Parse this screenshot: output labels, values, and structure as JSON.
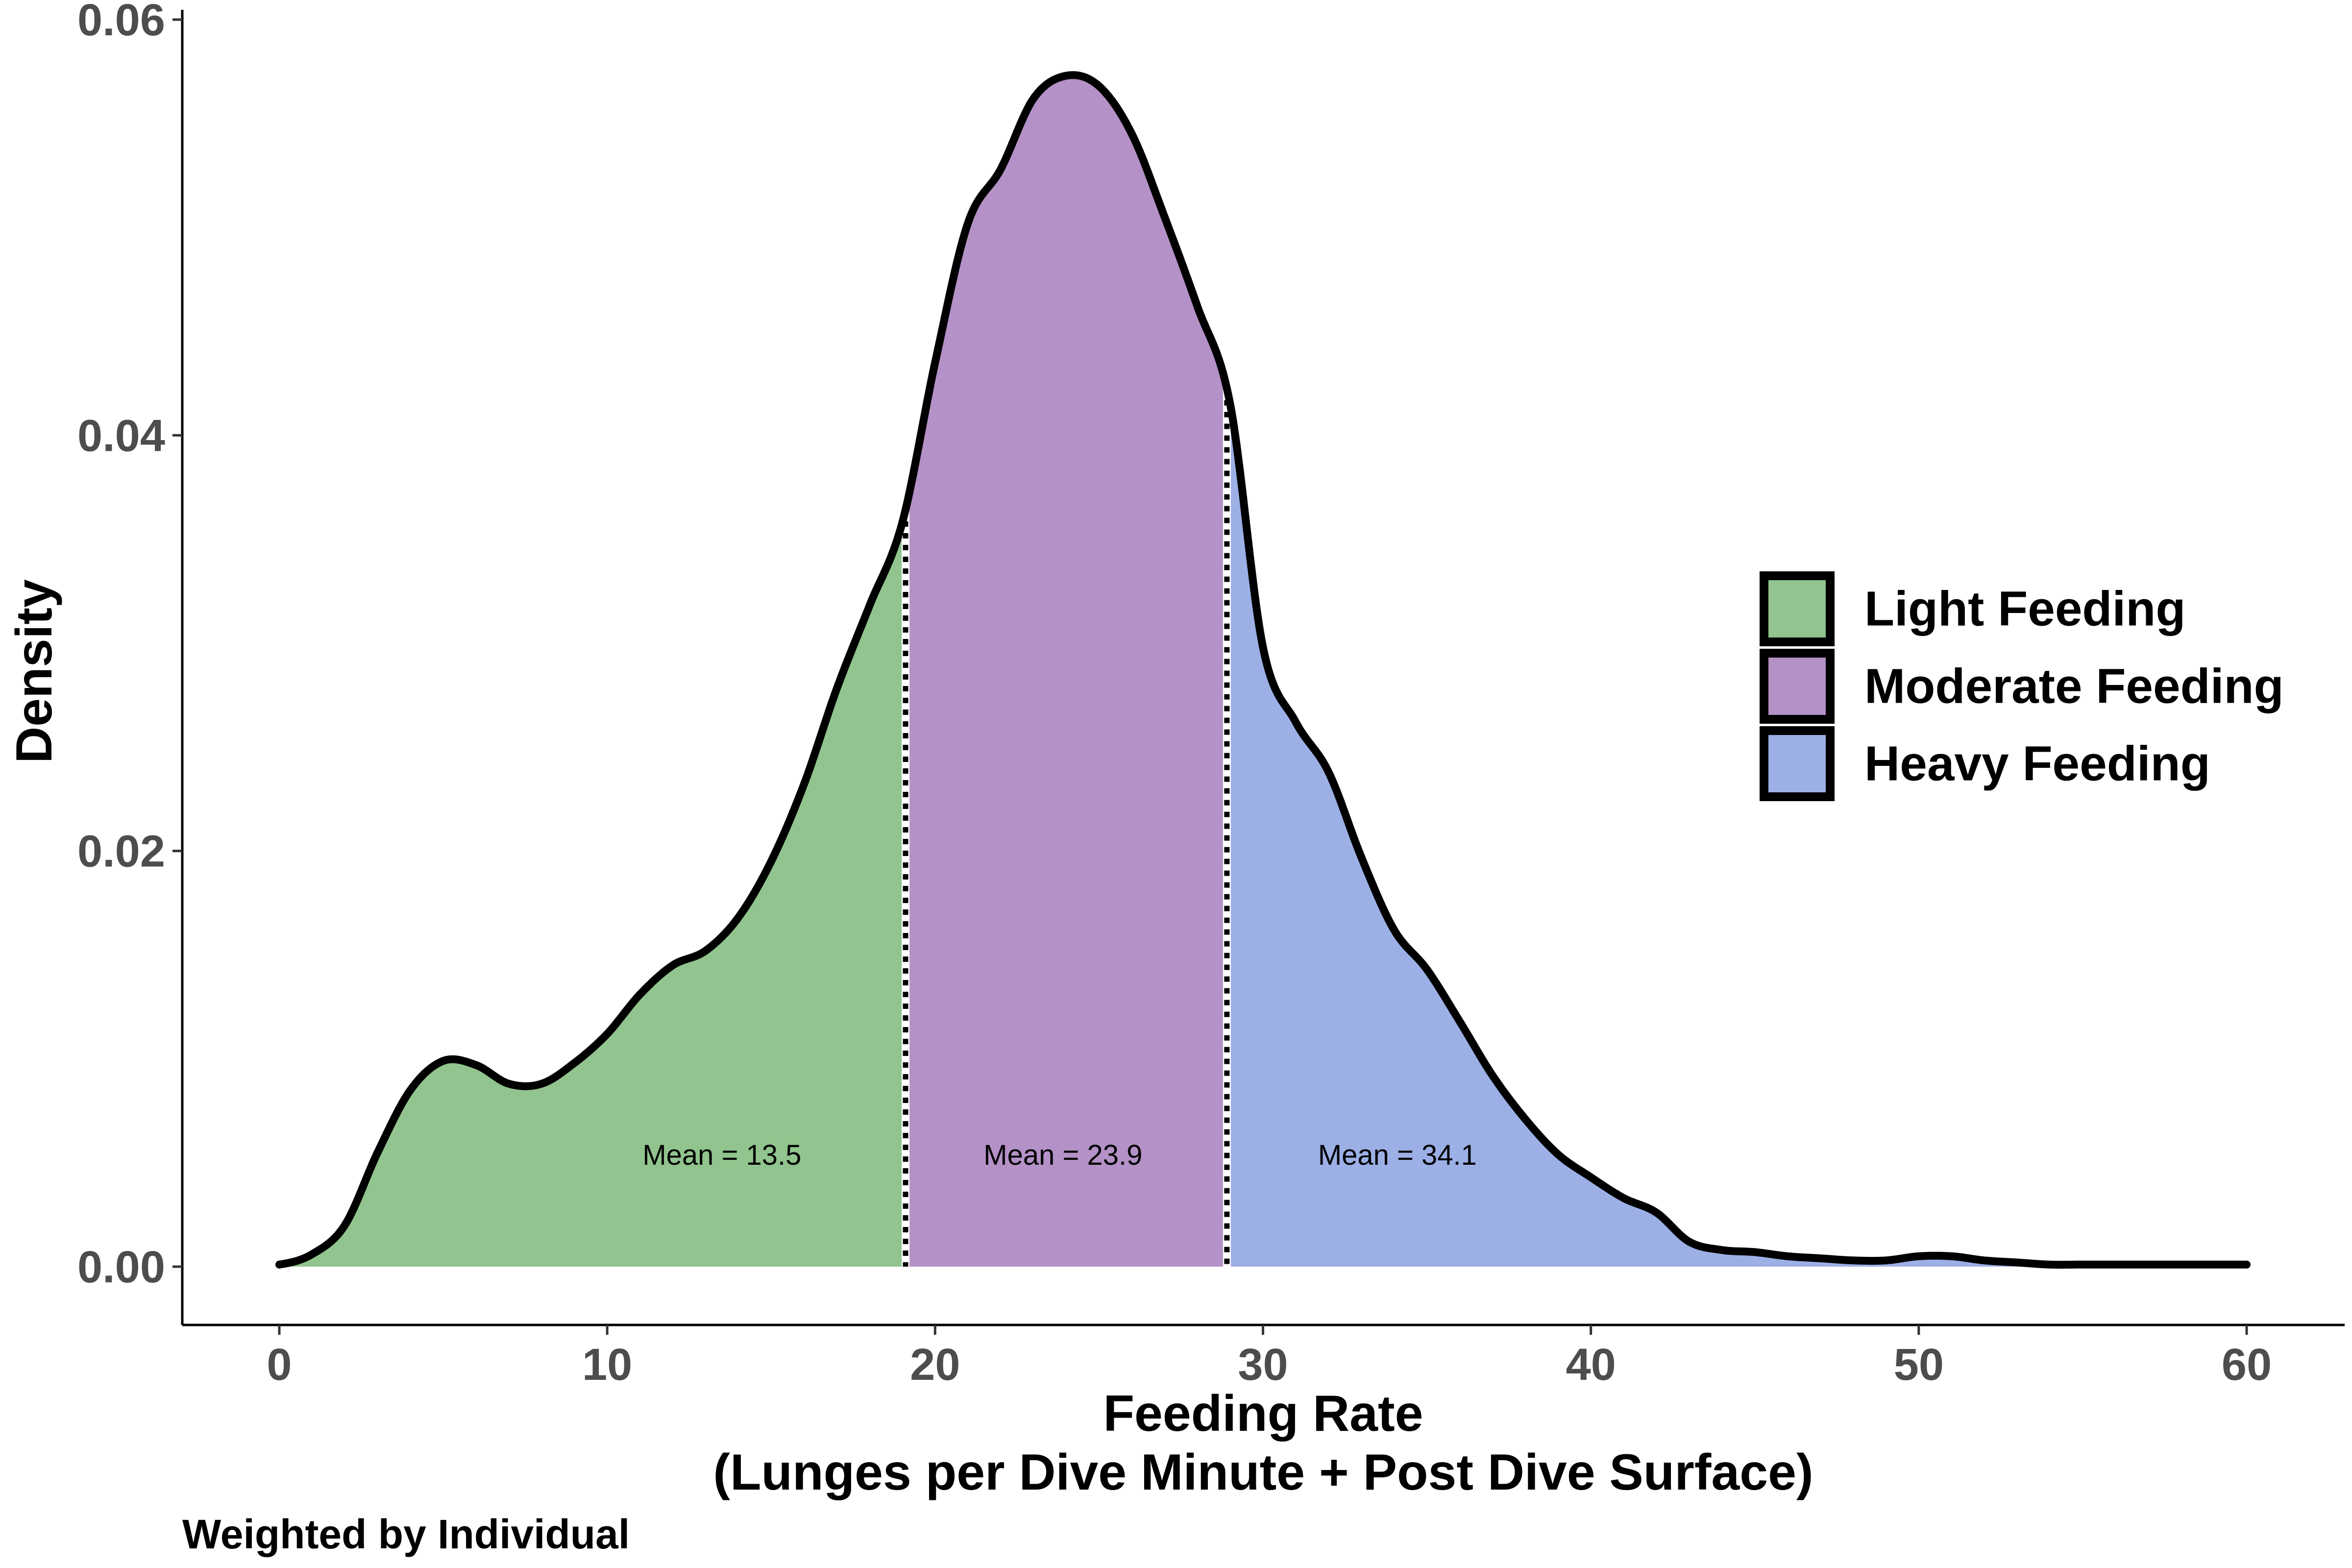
{
  "chart_data": {
    "type": "area",
    "xlabel_line1": "Feeding Rate",
    "xlabel_line2": "(Lunges per Dive Minute + Post Dive Surface)",
    "ylabel": "Density",
    "caption": "Weighted by Individual",
    "xlim": [
      0,
      60
    ],
    "ylim": [
      0,
      0.06
    ],
    "x_ticks": [
      "0",
      "10",
      "20",
      "30",
      "40",
      "50",
      "60"
    ],
    "y_ticks": [
      "0.00",
      "0.02",
      "0.04",
      "0.06"
    ],
    "grid": false,
    "legend_position": "right",
    "boundaries": [
      19.1,
      28.9
    ],
    "density_x": [
      0,
      1,
      2,
      3,
      4,
      5,
      6,
      7,
      8,
      9,
      10,
      11,
      12,
      13,
      14,
      15,
      16,
      17,
      18,
      19,
      20,
      21,
      22,
      23,
      24,
      25,
      26,
      27,
      28,
      29,
      30,
      31,
      32,
      33,
      34,
      35,
      36,
      37,
      38,
      39,
      40,
      41,
      42,
      43,
      44,
      45,
      46,
      47,
      48,
      49,
      50,
      51,
      52,
      53,
      54,
      55,
      56,
      57,
      58,
      59,
      60
    ],
    "density_y": [
      0.0001,
      0.0006,
      0.002,
      0.0055,
      0.0085,
      0.0099,
      0.0097,
      0.0088,
      0.0088,
      0.0098,
      0.0112,
      0.0131,
      0.0145,
      0.0152,
      0.0168,
      0.0195,
      0.0232,
      0.0278,
      0.0318,
      0.0358,
      0.0435,
      0.0502,
      0.0528,
      0.0562,
      0.0573,
      0.0568,
      0.0545,
      0.0505,
      0.0462,
      0.0415,
      0.0298,
      0.0262,
      0.0238,
      0.0197,
      0.0162,
      0.0143,
      0.0118,
      0.0092,
      0.0071,
      0.0054,
      0.0043,
      0.0033,
      0.0026,
      0.0012,
      0.0008,
      0.0007,
      0.0005,
      0.0004,
      0.0003,
      0.0003,
      0.0005,
      0.0005,
      0.0003,
      0.0002,
      0.0001,
      0.0001,
      0.0001,
      0.0001,
      0.0001,
      0.0001,
      0.0001
    ],
    "series": [
      {
        "name": "Light Feeding",
        "color": "#91c48e",
        "annotation": "Mean = 13.5",
        "annotation_x": 13.5,
        "annotation_y": 0.0049
      },
      {
        "name": "Moderate Feeding",
        "color": "#b491c6",
        "annotation": "Mean = 23.9",
        "annotation_x": 23.9,
        "annotation_y": 0.0049
      },
      {
        "name": "Heavy Feeding",
        "color": "#9cb0e6",
        "annotation": "Mean = 34.1",
        "annotation_x": 34.1,
        "annotation_y": 0.0049
      }
    ]
  }
}
